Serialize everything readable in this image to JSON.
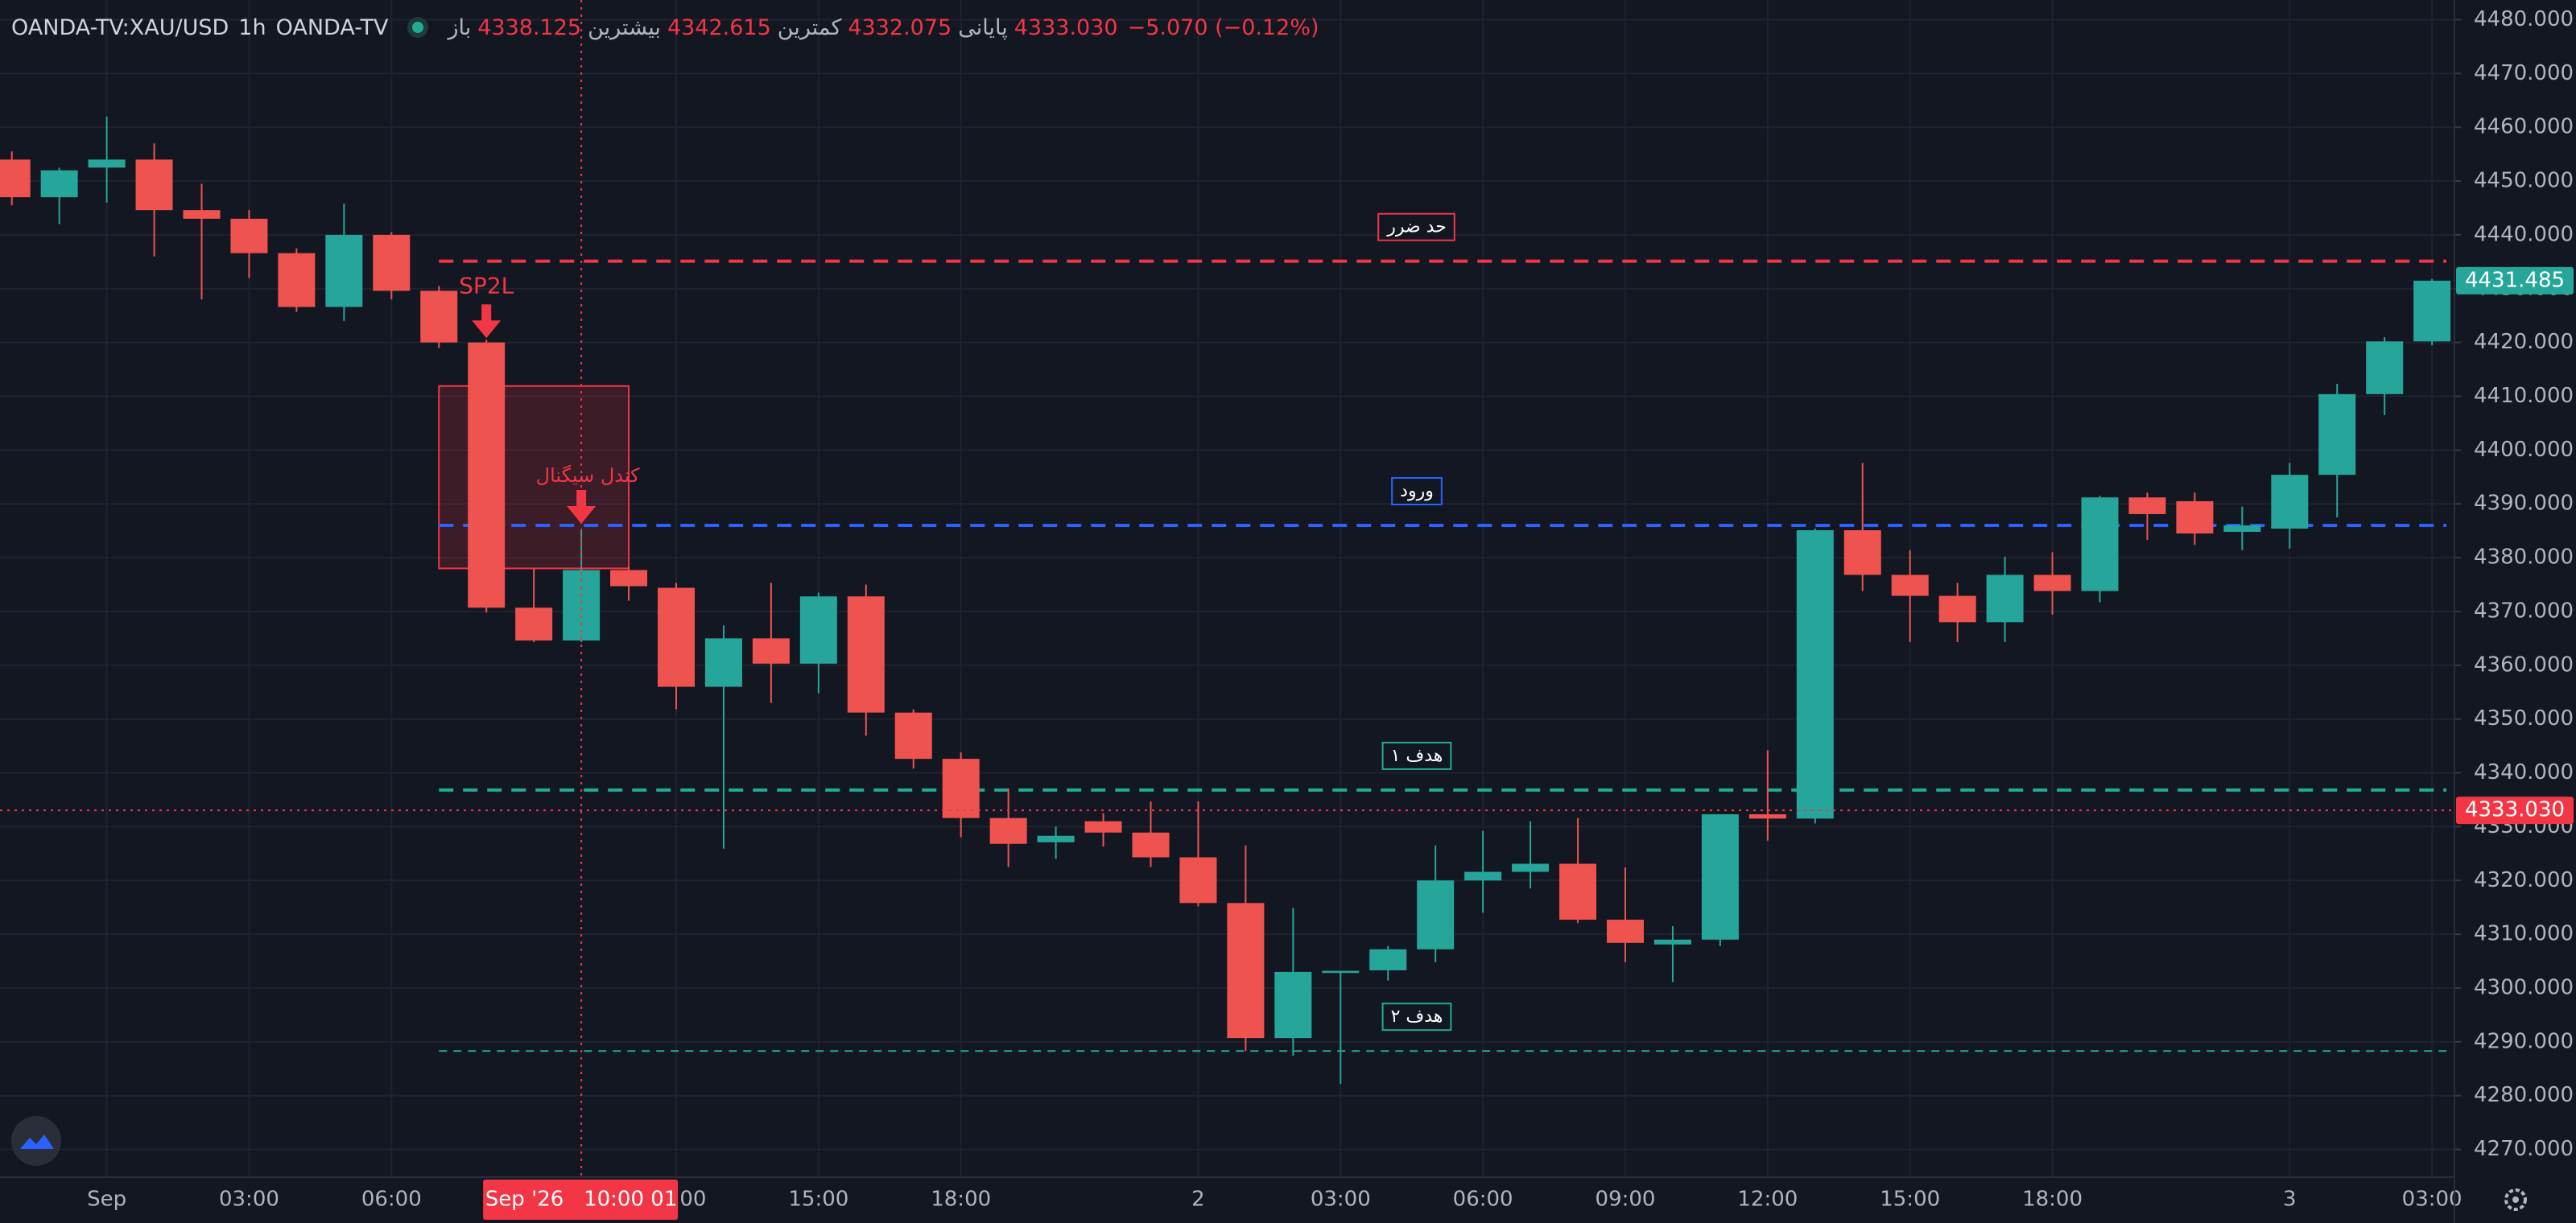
{
  "chart_data": {
    "type": "candlestick",
    "header": {
      "symbol": "OANDA-TV:XAU/USD",
      "interval": "1h",
      "source": "OANDA-TV",
      "ohlc": [
        {
          "label": "باز",
          "value": "4338.125"
        },
        {
          "label": "بیشترین",
          "value": "4342.615"
        },
        {
          "label": "کمترین",
          "value": "4332.075"
        },
        {
          "label": "پایانی",
          "value": "4333.030"
        }
      ],
      "change": "−5.070 (−0.12%)"
    },
    "categories": [
      null,
      null,
      "Sep",
      null,
      null,
      "03:00",
      null,
      null,
      "06:00",
      null,
      null,
      null,
      null,
      null,
      "12:00",
      null,
      null,
      "15:00",
      null,
      null,
      "18:00",
      null,
      null,
      null,
      null,
      "2",
      null,
      null,
      "03:00",
      null,
      null,
      "06:00",
      null,
      null,
      "09:00",
      null,
      null,
      "12:00",
      null,
      null,
      "15:00",
      null,
      null,
      "18:00",
      null,
      null,
      null,
      null,
      "3",
      null,
      null,
      "03:00"
    ],
    "up_color": "#26a69a",
    "down_color": "#ef5350",
    "open": [
      4454,
      4447,
      4452.5,
      4454,
      4444.6,
      4443,
      4436.6,
      4426.6,
      4440,
      4429.6,
      4420,
      4370.7,
      4364.6,
      4377.7,
      4374.4,
      4356,
      4365,
      4360.3,
      4372.8,
      4351.2,
      4342.6,
      4331.6,
      4327.1,
      4331,
      4328.9,
      4324.3,
      4315.8,
      4290.7,
      4302.8,
      4303.3,
      4307.2,
      4320,
      4321.6,
      4323.1,
      4312.7,
      4308.1,
      4309,
      4332.3,
      4331.5,
      4385.1,
      4376.8,
      4372.9,
      4368,
      4376.8,
      4373.8,
      4391.2,
      4390.5,
      4384.8,
      4385.4,
      4395.4,
      4410.4,
      4420.2
    ],
    "high": [
      4455.5,
      4452.5,
      4462,
      4457,
      4449.5,
      4444.6,
      4437.5,
      4445.8,
      4440.5,
      4430.5,
      4420.5,
      4378,
      4385,
      4378.3,
      4375.3,
      4367.4,
      4375.3,
      4373.5,
      4375,
      4351.8,
      4343.8,
      4337.1,
      4330,
      4332.5,
      4334.7,
      4334.7,
      4326.5,
      4314.9,
      4303.2,
      4307.8,
      4326.5,
      4329.2,
      4331,
      4331.6,
      4322.4,
      4311.5,
      4332.3,
      4344.2,
      4385.4,
      4397.6,
      4381.4,
      4375.3,
      4380.2,
      4381,
      4391.5,
      4392.1,
      4392.1,
      4389.5,
      4397.6,
      4412.3,
      4421,
      4431.8
    ],
    "low": [
      4445.5,
      4442,
      4446,
      4436,
      4428,
      4432,
      4425.7,
      4424,
      4428,
      4419,
      4369.8,
      4364.3,
      4364.3,
      4372,
      4351.8,
      4325.9,
      4353,
      4354.8,
      4346.9,
      4340.8,
      4328,
      4322.5,
      4324,
      4326.3,
      4322.5,
      4315.2,
      4288.3,
      4287.4,
      4282.2,
      4301.4,
      4304.8,
      4314,
      4318.5,
      4312.1,
      4304.8,
      4301.1,
      4307.8,
      4327.4,
      4330.6,
      4373.8,
      4364.3,
      4364.3,
      4364.3,
      4369.4,
      4371.7,
      4383.3,
      4382.4,
      4381.4,
      4381.7,
      4387.5,
      4406.5,
      4419.5
    ],
    "close": [
      4447,
      4452,
      4454,
      4444.6,
      4443,
      4436.6,
      4426.6,
      4440,
      4429.6,
      4420,
      4370.7,
      4364.6,
      4377.7,
      4374.7,
      4356,
      4365,
      4360.3,
      4372.8,
      4351.2,
      4342.6,
      4331.6,
      4326.8,
      4328.3,
      4328.9,
      4324.3,
      4315.8,
      4290.7,
      4303,
      4303.2,
      4307.2,
      4320,
      4321.6,
      4323.1,
      4312.7,
      4308.4,
      4309,
      4332.3,
      4331.5,
      4385.1,
      4376.8,
      4372.9,
      4368,
      4376.8,
      4373.8,
      4391.2,
      4388.1,
      4384.5,
      4386,
      4395.4,
      4410.4,
      4420.2,
      4431.485
    ],
    "ylim": [
      4264.85,
      4483.66
    ],
    "yticks": [
      {
        "value": 4270,
        "label": "4270.000"
      },
      {
        "value": 4280,
        "label": "4280.000"
      },
      {
        "value": 4290,
        "label": "4290.000"
      },
      {
        "value": 4300,
        "label": "4300.000"
      },
      {
        "value": 4310,
        "label": "4310.000"
      },
      {
        "value": 4320,
        "label": "4320.000"
      },
      {
        "value": 4330,
        "label": "4330.000"
      },
      {
        "value": 4340,
        "label": "4340.000"
      },
      {
        "value": 4350,
        "label": "4350.000"
      },
      {
        "value": 4360,
        "label": "4360.000"
      },
      {
        "value": 4370,
        "label": "4370.000"
      },
      {
        "value": 4380,
        "label": "4380.000"
      },
      {
        "value": 4390,
        "label": "4390.000"
      },
      {
        "value": 4400,
        "label": "4400.000"
      },
      {
        "value": 4410,
        "label": "4410.000"
      },
      {
        "value": 4420,
        "label": "4420.000"
      },
      {
        "value": 4430,
        "label": "4430.000"
      },
      {
        "value": 4440,
        "label": "4440.000"
      },
      {
        "value": 4450,
        "label": "4450.000"
      },
      {
        "value": 4460,
        "label": "4460.000"
      },
      {
        "value": 4470,
        "label": "4470.000"
      },
      {
        "value": 4480,
        "label": "4480.000"
      }
    ],
    "grid": true,
    "levels": [
      {
        "label": "حد ضرر",
        "value": 4435.1,
        "color": "#f23645"
      },
      {
        "label": "ورود",
        "value": 4386,
        "color": "#2962ff"
      },
      {
        "label": "هدف ۱",
        "value": 4336.8,
        "color": "#22ab94"
      },
      {
        "label": "هدف ۲",
        "value": 4288.3,
        "color": "#22ab94"
      }
    ],
    "zone": {
      "label": "کندل سیگنال",
      "high": 4411.9,
      "low": 4378,
      "color": "#f23645"
    },
    "signal_label": "SP2L",
    "crosshair": {
      "price": {
        "value": 4333.03,
        "label": "4333.030"
      },
      "time_label": "Sep '26   10:00 01",
      "color": "#f23645"
    },
    "last_price": {
      "value": 4431.485,
      "label": "4431.485"
    }
  }
}
